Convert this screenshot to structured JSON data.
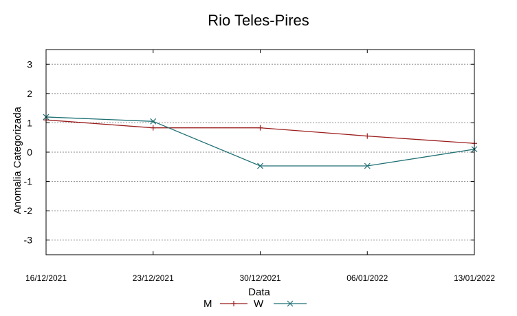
{
  "chart_data": {
    "type": "line",
    "title": "Rio Teles-Pires",
    "xlabel": "Data",
    "ylabel": "Anomalia Categorizada",
    "categories": [
      "16/12/2021",
      "23/12/2021",
      "30/12/2021",
      "06/01/2022",
      "13/01/2022"
    ],
    "ylim": [
      -3.5,
      3.5
    ],
    "yticks": [
      3,
      2,
      1,
      0,
      -1,
      -2,
      -3
    ],
    "grid": true,
    "legend_position": "bottom-center",
    "series": [
      {
        "name": "M",
        "values": [
          1.1,
          0.83,
          0.83,
          0.55,
          0.3
        ],
        "color": "#9b1c1c",
        "marker": "plus"
      },
      {
        "name": "W",
        "values": [
          1.2,
          1.05,
          -0.47,
          -0.47,
          0.1
        ],
        "color": "#1e6f73",
        "marker": "cross"
      }
    ]
  }
}
